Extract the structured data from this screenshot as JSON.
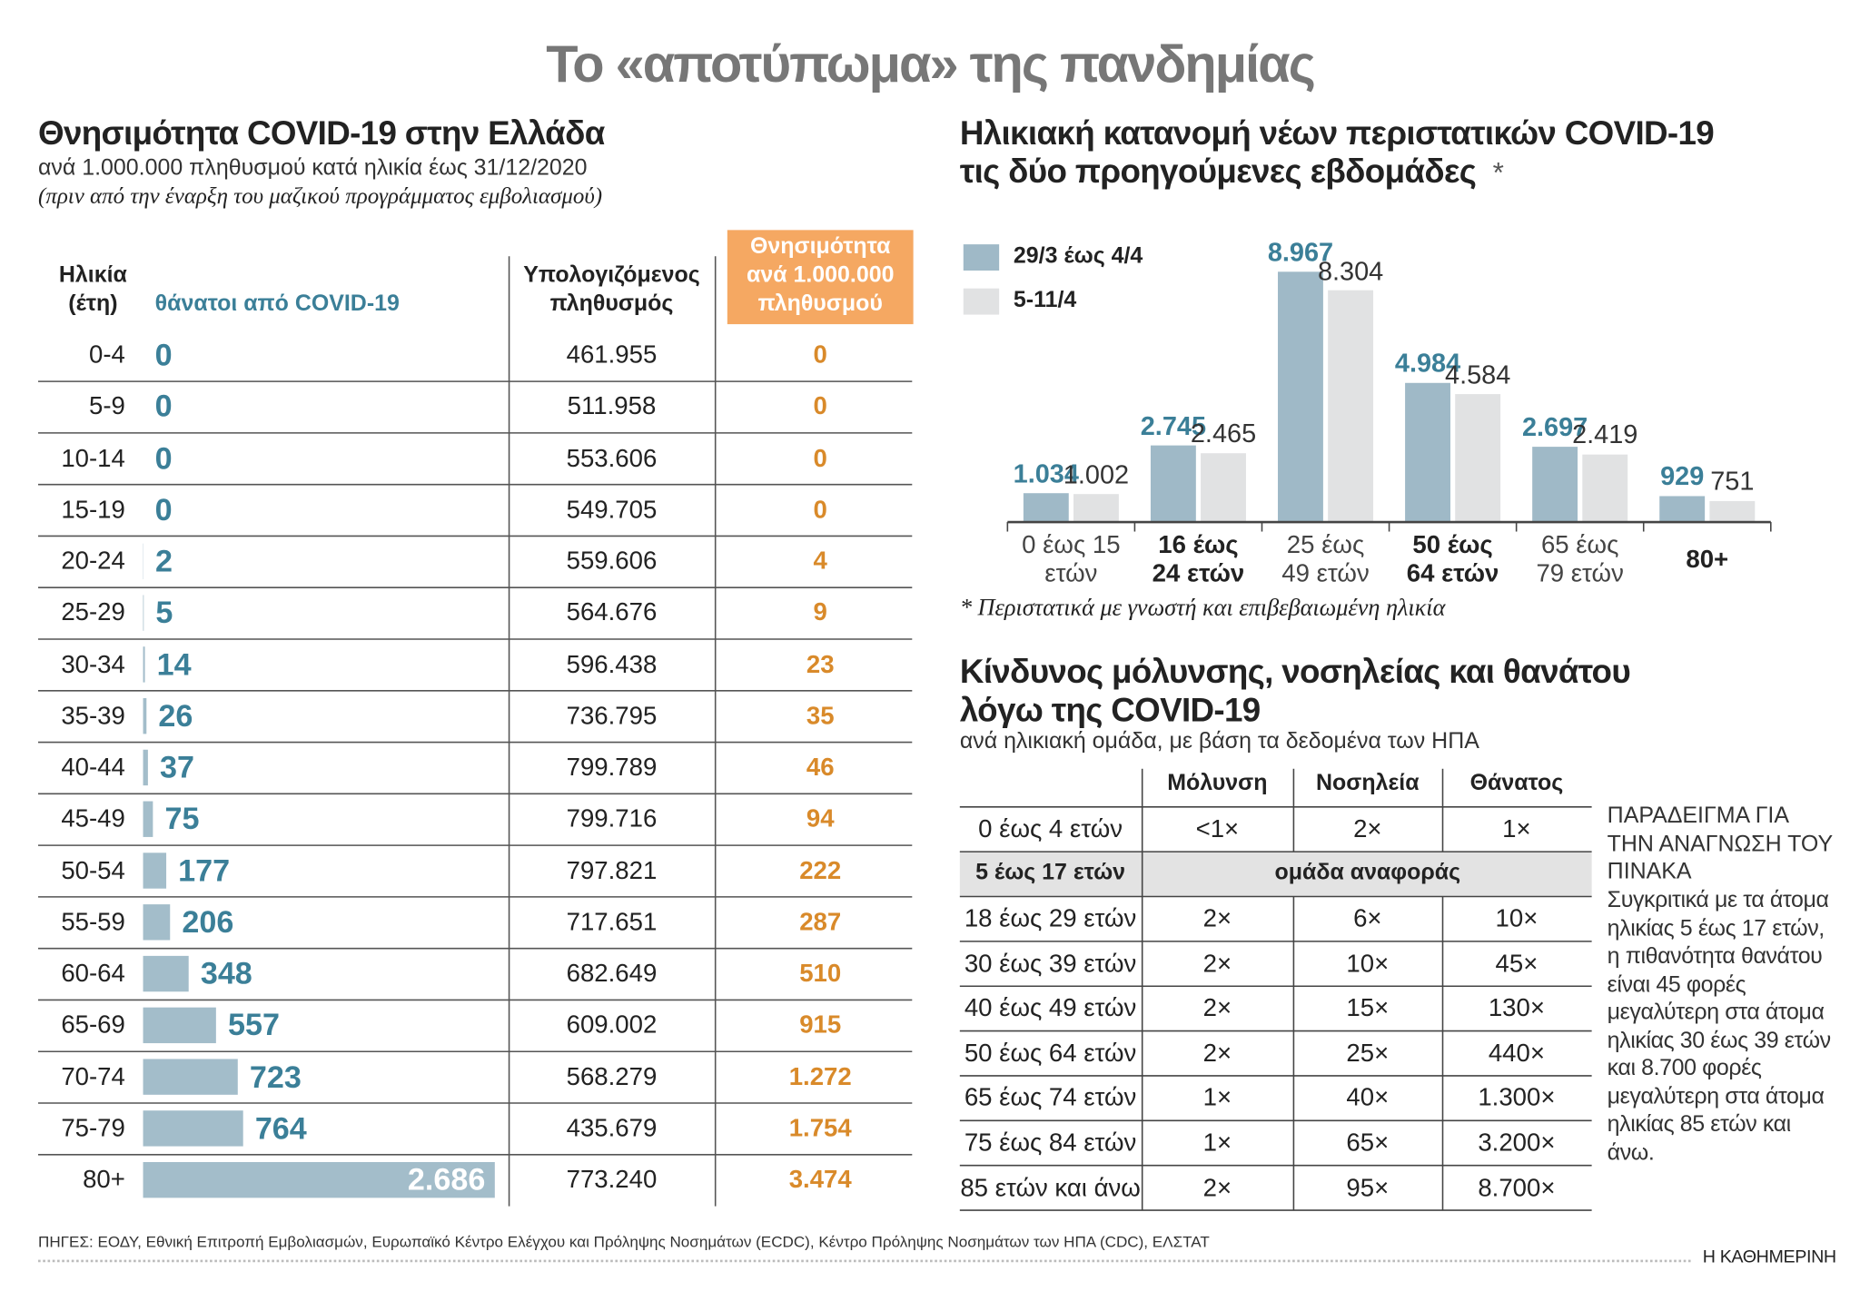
{
  "title": "Το «αποτύπωμα» της πανδημίας",
  "chart_data": [
    {
      "type": "hbar",
      "title": "Θνησιμότητα COVID-19 στην Ελλάδα",
      "subtitle": "ανά 1.000.000 πληθυσμού κατά ηλικία έως 31/12/2020",
      "note": "(πριν από την έναρξη του μαζικού προγράμματος εμβολιασμού)",
      "category_header": [
        "Ηλικία",
        "(έτη)"
      ],
      "categories": [
        "0-4",
        "5-9",
        "10-14",
        "15-19",
        "20-24",
        "25-29",
        "30-34",
        "35-39",
        "40-44",
        "45-49",
        "50-54",
        "55-59",
        "60-64",
        "65-69",
        "70-74",
        "75-79",
        "80+"
      ],
      "series": [
        {
          "name": "θάνατοι από COVID-19",
          "color": "#a3bdca",
          "label_color": "#3b7f98",
          "values": [
            0,
            0,
            0,
            0,
            2,
            5,
            14,
            26,
            37,
            75,
            177,
            206,
            348,
            557,
            723,
            764,
            2686
          ],
          "value_labels": [
            "0",
            "0",
            "0",
            "0",
            "2",
            "5",
            "14",
            "26",
            "37",
            "75",
            "177",
            "206",
            "348",
            "557",
            "723",
            "764",
            "2.686"
          ]
        }
      ],
      "table_columns": [
        {
          "header": [
            "Υπολογιζόμενος",
            "πληθυσμός"
          ],
          "cells": [
            "461.955",
            "511.958",
            "553.606",
            "549.705",
            "559.606",
            "564.676",
            "596.438",
            "736.795",
            "799.789",
            "799.716",
            "797.821",
            "717.651",
            "682.649",
            "609.002",
            "568.279",
            "435.679",
            "773.240"
          ]
        },
        {
          "header": [
            "Θνησιμότητα",
            "ανά 1.000.000",
            "πληθυσμού"
          ],
          "color": "#d98a2a",
          "header_fill": "#f5a862",
          "cells": [
            "0",
            "0",
            "0",
            "0",
            "4",
            "9",
            "23",
            "35",
            "46",
            "94",
            "222",
            "287",
            "510",
            "915",
            "1.272",
            "1.754",
            "3.474"
          ]
        }
      ]
    },
    {
      "type": "bar",
      "title": "Ηλικιακή κατανομή νέων περιστατικών COVID-19 τις δύο προηγούμενες εβδομάδες",
      "title_mark": "*",
      "categories": [
        "0 έως 15 ετών",
        "16 έως 24 ετών",
        "25 έως 49 ετών",
        "50 έως 64 ετών",
        "65 έως 79 ετών",
        "80+"
      ],
      "series": [
        {
          "name": "29/3 έως 4/4",
          "color": "#9fb9c7",
          "label_color": "#3b7f98",
          "values": [
            1034,
            2745,
            8967,
            4984,
            2697,
            929
          ],
          "value_labels": [
            "1.034",
            "2.745",
            "8.967",
            "4.984",
            "2.697",
            "929"
          ]
        },
        {
          "name": "5-11/4",
          "color": "#e1e2e3",
          "label_color": "#333333",
          "values": [
            1002,
            2465,
            8304,
            4584,
            2419,
            751
          ],
          "value_labels": [
            "1.002",
            "2.465",
            "8.304",
            "4.584",
            "2.419",
            "751"
          ]
        }
      ],
      "footnote": "* Περιστατικά με γνωστή και επιβεβαιωμένη ηλικία"
    }
  ],
  "risk_table": {
    "title": "Κίνδυνος μόλυνσης, νοσηλείας και θανάτου λόγω της COVID-19",
    "subtitle": "ανά ηλικιακή ομάδα, με βάση τα δεδομένα των ΗΠΑ",
    "columns": [
      "Μόλυνση",
      "Νοσηλεία",
      "Θάνατος"
    ],
    "rows": [
      [
        "0 έως 4 ετών",
        "<1×",
        "2×",
        "1×"
      ],
      [
        "5 έως 17 ετών",
        "ομάδα αναφοράς"
      ],
      [
        "18 έως 29 ετών",
        "2×",
        "6×",
        "10×"
      ],
      [
        "30 έως 39 ετών",
        "2×",
        "10×",
        "45×"
      ],
      [
        "40 έως 49 ετών",
        "2×",
        "15×",
        "130×"
      ],
      [
        "50 έως 64 ετών",
        "2×",
        "25×",
        "440×"
      ],
      [
        "65 έως 74 ετών",
        "1×",
        "40×",
        "1.300×"
      ],
      [
        "75 έως 84 ετών",
        "1×",
        "65×",
        "3.200×"
      ],
      [
        "85 ετών και άνω",
        "2×",
        "95×",
        "8.700×"
      ]
    ]
  },
  "example": {
    "heading": "ΠΑΡΑΔΕΙΓΜΑ ΓΙΑ ΤΗΝ ΑΝΑΓΝΩΣΗ ΤΟΥ ΠΙΝΑΚΑ",
    "text": "Συγκριτικά με τα άτομα ηλικίας 5 έως 17 ετών, η πιθανότητα θανάτου είναι 45 φορές μεγαλύτερη στα άτομα ηλικίας 30 έως 39 ετών και 8.700 φορές μεγαλύτερη στα άτομα ηλικίας 85 ετών και άνω."
  },
  "source": "ΠΗΓΕΣ: ΕΟΔΥ, Εθνική Επιτροπή Εμβολιασμών, Ευρωπαϊκό Κέντρο Ελέγχου και Πρόληψης Νοσημάτων (ECDC), Κέντρο Πρόληψης Νοσημάτων των ΗΠΑ (CDC), ΕΛΣΤΑΤ",
  "brand": "Η ΚΑΘΗΜΕΡΙΝΗ"
}
